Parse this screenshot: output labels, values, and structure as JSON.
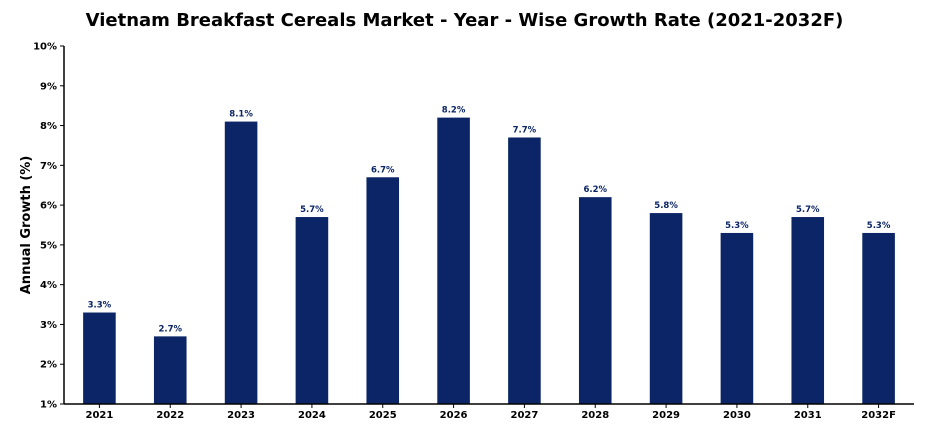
{
  "chart_data": {
    "type": "bar",
    "title": "Vietnam Breakfast Cereals Market - Year - Wise Growth Rate (2021-2032F)",
    "xlabel": "",
    "ylabel": "Annual Growth (%)",
    "categories": [
      "2021",
      "2022",
      "2023",
      "2024",
      "2025",
      "2026",
      "2027",
      "2028",
      "2029",
      "2030",
      "2031",
      "2032F"
    ],
    "values": [
      3.3,
      2.7,
      8.1,
      5.7,
      6.7,
      8.2,
      7.7,
      6.2,
      5.8,
      5.3,
      5.7,
      5.3
    ],
    "value_labels": [
      "3.3%",
      "2.7%",
      "8.1%",
      "5.7%",
      "6.7%",
      "8.2%",
      "7.7%",
      "6.2%",
      "5.8%",
      "5.3%",
      "5.7%",
      "5.3%"
    ],
    "ylim": [
      1,
      10
    ],
    "y_ticks": [
      1,
      2,
      3,
      4,
      5,
      6,
      7,
      8,
      9,
      10
    ],
    "y_tick_labels": [
      "1%",
      "2%",
      "3%",
      "4%",
      "5%",
      "6%",
      "7%",
      "8%",
      "9%",
      "10%"
    ],
    "bar_color": "#0b2566",
    "label_color": "#0b2566",
    "grid": false,
    "legend": "none"
  }
}
